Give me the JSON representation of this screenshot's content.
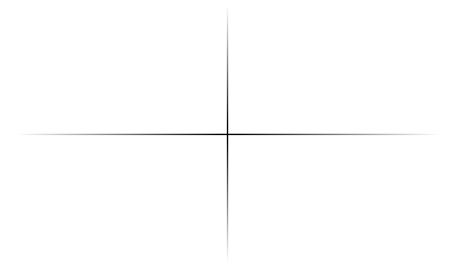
{
  "crosshair": {
    "icon": "crosshair-icon",
    "color": "#000000",
    "fade_color": "#ffffff"
  }
}
